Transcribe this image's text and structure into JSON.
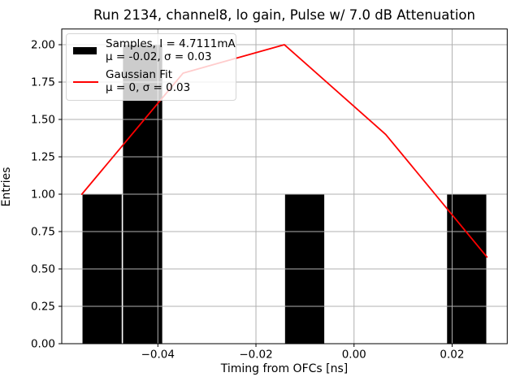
{
  "figure": {
    "title": "Run 2134, channel8, lo gain, Pulse w/ 7.0 dB Attenuation",
    "xlabel": "Timing from OFCs [ns]",
    "ylabel": "Entries"
  },
  "legend": {
    "samples_label": "Samples, I = 4.7111mA",
    "samples_stats": "μ = -0.02, σ = 0.03",
    "fit_label": "Gaussian Fit",
    "fit_stats": "μ = 0, σ = 0.03"
  },
  "colors": {
    "bar": "#000000",
    "fit_line": "#ff0000",
    "grid": "#b0b0b0",
    "axes": "#000000",
    "background": "#ffffff"
  },
  "chart_data": {
    "type": "bar",
    "subtype": "histogram_with_fit_line",
    "title": "Run 2134, channel8, lo gain, Pulse w/ 7.0 dB Attenuation",
    "xlabel": "Timing from OFCs [ns]",
    "ylabel": "Entries",
    "xlim": [
      -0.0596,
      0.03124
    ],
    "ylim": [
      0,
      2.105
    ],
    "grid": true,
    "legend_position": "upper left",
    "xticks": {
      "values": [
        -0.04,
        -0.02,
        0.0,
        0.02
      ],
      "labels": [
        "−0.04",
        "−0.02",
        "0.00",
        "0.02"
      ]
    },
    "yticks": {
      "values": [
        0,
        0.25,
        0.5,
        0.75,
        1.0,
        1.25,
        1.5,
        1.75,
        2.0
      ],
      "labels": [
        "0.00",
        "0.25",
        "0.50",
        "0.75",
        "1.00",
        "1.25",
        "1.50",
        "1.75",
        "2.00"
      ]
    },
    "series": [
      {
        "name": "Samples, I = 4.7111mA",
        "kind": "histogram",
        "mu": -0.02,
        "sigma": 0.03,
        "color": "#000000",
        "bin_edges": [
          -0.0555,
          -0.04724,
          -0.03898,
          -0.03072,
          -0.02246,
          -0.0142,
          -0.00594,
          0.00232,
          0.01058,
          0.01884,
          0.0271
        ],
        "counts": [
          1,
          2,
          0,
          0,
          0,
          1,
          0,
          0,
          0,
          1
        ]
      },
      {
        "name": "Gaussian Fit",
        "kind": "line",
        "mu": 0,
        "sigma": 0.03,
        "color": "#ff0000",
        "x": [
          -0.0555,
          -0.03485,
          -0.0142,
          0.00645,
          0.0271
        ],
        "y": [
          1.0,
          1.81,
          2.0,
          1.4,
          0.58
        ]
      }
    ]
  }
}
